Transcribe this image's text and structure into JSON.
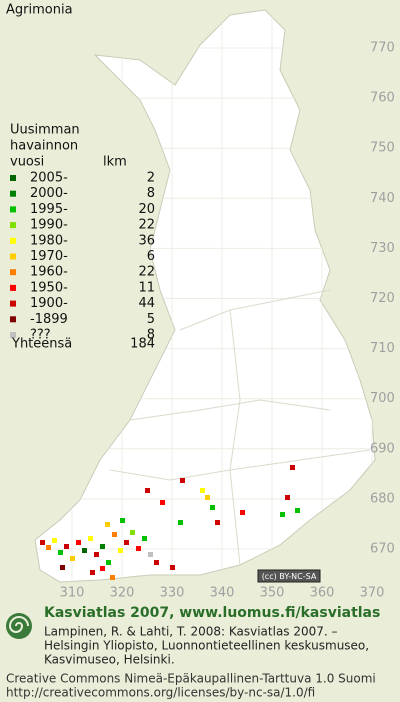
{
  "title": "Agrimonia",
  "legend": {
    "heading": [
      "Uusimman",
      "havainnon"
    ],
    "col_year": "vuosi",
    "col_count": "lkm",
    "entries": [
      {
        "label": "2005-",
        "count": 2,
        "color": "#006400"
      },
      {
        "label": "2000-",
        "count": 8,
        "color": "#008000"
      },
      {
        "label": "1995-",
        "count": 20,
        "color": "#00c000"
      },
      {
        "label": "1990-",
        "count": 22,
        "color": "#80e000"
      },
      {
        "label": "1980-",
        "count": 36,
        "color": "#ffff00"
      },
      {
        "label": "1970-",
        "count": 6,
        "color": "#ffcc00"
      },
      {
        "label": "1960-",
        "count": 22,
        "color": "#ff8000"
      },
      {
        "label": "1950-",
        "count": 11,
        "color": "#ff0000"
      },
      {
        "label": "1900-",
        "count": 44,
        "color": "#cc0000"
      },
      {
        "label": "-1899",
        "count": 5,
        "color": "#800000"
      },
      {
        "label": "???",
        "count": 8,
        "color": "#c0c0c0"
      }
    ],
    "total_label": "Yhteensä",
    "total": 184
  },
  "x_ticks": [
    310,
    320,
    330,
    340,
    350,
    360,
    370
  ],
  "y_ticks": [
    770,
    760,
    750,
    740,
    730,
    720,
    710,
    700,
    690,
    680,
    670
  ],
  "license_badge": "(cc) BY-NC-SA",
  "footer": {
    "title": "Kasviatlas 2007, www.luomus.fi/kasviatlas",
    "citation": [
      "Lampinen, R. & Lahti, T. 2008: Kasviatlas 2007. –",
      "Helsingin Yliopisto, Luonnontieteellinen keskusmuseo,",
      "Kasvimuseo, Helsinki."
    ],
    "license": [
      "Creative Commons Nimeä-Epäkaupallinen-Tarttuva 1.0 Suomi",
      "http://creativecommons.org/licenses/by-nc-sa/1.0/fi"
    ]
  }
}
